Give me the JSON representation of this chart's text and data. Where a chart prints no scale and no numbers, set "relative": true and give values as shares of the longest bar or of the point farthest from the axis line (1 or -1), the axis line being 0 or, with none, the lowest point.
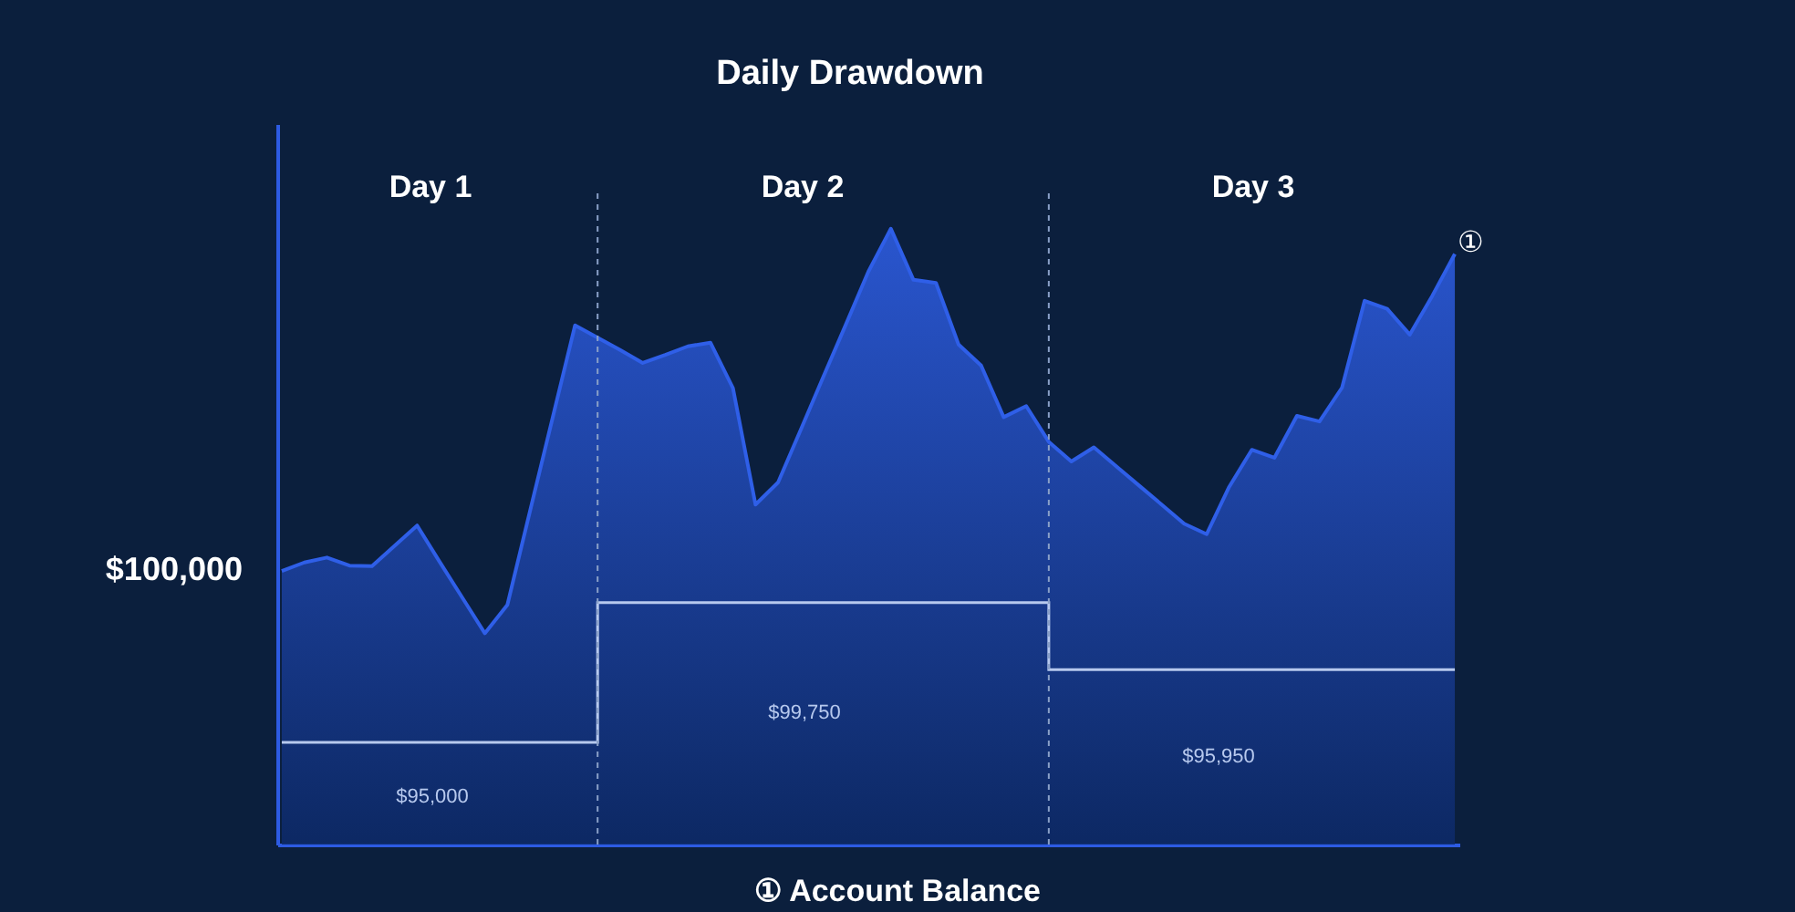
{
  "chart_data": {
    "type": "area",
    "title": "Daily Drawdown",
    "relative": true,
    "categories": [
      null,
      null,
      null,
      null,
      null,
      null,
      null,
      null,
      null,
      null,
      null,
      null,
      null,
      null,
      null,
      null,
      null,
      null,
      null,
      null,
      null,
      null,
      null,
      null,
      null,
      null,
      null,
      null,
      null,
      null,
      null,
      null,
      null,
      null,
      null,
      null,
      null,
      null,
      null,
      null,
      null,
      null,
      null,
      null,
      null,
      null,
      null,
      null,
      null,
      null,
      null,
      null,
      null
    ],
    "series": [
      {
        "color": "#2f5fe8",
        "values": [
          0.444,
          0.458,
          0.466,
          0.453,
          0.452,
          0.485,
          0.518,
          0.459,
          0.401,
          0.343,
          0.389,
          0.541,
          0.692,
          0.843,
          0.823,
          0.803,
          0.782,
          0.795,
          0.809,
          0.815,
          0.741,
          0.552,
          0.588,
          0.673,
          0.759,
          0.844,
          0.93,
          1.0,
          0.917,
          0.912,
          0.812,
          0.778,
          0.694,
          0.712,
          0.654,
          0.622,
          0.645,
          0.614,
          0.583,
          0.552,
          0.521,
          0.504,
          0.581,
          0.641,
          0.628,
          0.696,
          0.687,
          0.742,
          0.883,
          0.87,
          0.828,
          0.891,
          0.959
        ]
      },
      {
        "type": "step",
        "color": "#b7c9ee",
        "values": [
          0.166,
          0.166,
          0.166,
          0.166,
          0.166,
          0.166,
          0.166,
          0.166,
          0.166,
          0.166,
          0.166,
          0.166,
          0.166,
          0.166,
          0.393,
          0.393,
          0.393,
          0.393,
          0.393,
          0.393,
          0.393,
          0.393,
          0.393,
          0.393,
          0.393,
          0.393,
          0.393,
          0.393,
          0.393,
          0.393,
          0.393,
          0.393,
          0.393,
          0.393,
          0.284,
          0.284,
          0.284,
          0.284,
          0.284,
          0.284,
          0.284,
          0.284,
          0.284,
          0.284,
          0.284,
          0.284,
          0.284,
          0.284,
          0.284,
          0.284,
          0.284,
          0.284,
          0.284
        ]
      }
    ],
    "annotations": [
      "Day 1",
      "Day 2",
      "Day 3",
      "$100,000",
      "$95,000",
      "$99,750",
      "$95,950",
      "①",
      "① Account Balance"
    ],
    "grid": false
  }
}
